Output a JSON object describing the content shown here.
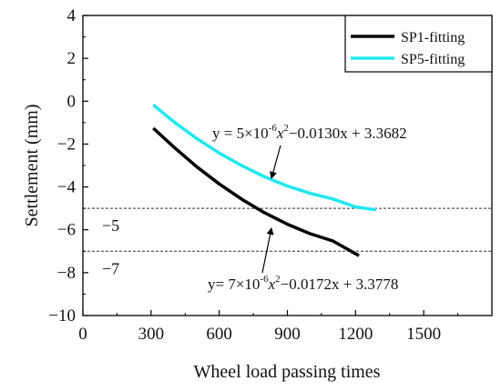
{
  "chart_data": {
    "type": "line",
    "xlabel": "Wheel load passing times",
    "ylabel": "Settlement (mm)",
    "xlim": [
      0,
      1800
    ],
    "ylim": [
      -10,
      4
    ],
    "xticks": [
      0,
      300,
      600,
      900,
      1200,
      1500
    ],
    "yticks": [
      -10,
      -8,
      -6,
      -4,
      -2,
      0,
      2,
      4
    ],
    "x_tick_labels": [
      "0",
      "300",
      "600",
      "900",
      "1200",
      "1500"
    ],
    "y_tick_labels": [
      "−10",
      "−8",
      "−6",
      "−4",
      "−2",
      "0",
      "2",
      "4"
    ],
    "grid": false,
    "legend_position": "top-right",
    "series": [
      {
        "name": "SP1-fitting",
        "color": "#000000",
        "x_range": [
          310,
          1215
        ],
        "x": [
          310,
          400,
          500,
          600,
          700,
          800,
          900,
          1000,
          1100,
          1215
        ],
        "y": [
          -1.26,
          -2.14,
          -3.05,
          -3.86,
          -4.58,
          -5.21,
          -5.74,
          -6.18,
          -6.52,
          -7.21
        ]
      },
      {
        "name": "SP5-fitting",
        "color": "#22e8ee",
        "x_range": [
          310,
          1290
        ],
        "x": [
          310,
          400,
          500,
          600,
          700,
          800,
          900,
          1000,
          1100,
          1200,
          1290
        ],
        "y": [
          -0.17,
          -0.96,
          -1.73,
          -2.42,
          -3.01,
          -3.53,
          -3.96,
          -4.3,
          -4.56,
          -4.93,
          -5.07
        ]
      }
    ],
    "reference_lines": [
      {
        "y": -5,
        "label": "−5",
        "style": "dashed"
      },
      {
        "y": -7,
        "label": "−7",
        "style": "dashed"
      }
    ],
    "annotations": [
      {
        "target": "SP5-fitting",
        "prefix": "y = 5×10",
        "exp": "-6",
        "mid": "x",
        "sq": "2",
        "tail": "−0.0130x + 3.3682",
        "arrow_from_x": 810,
        "arrow_to_x": 760
      },
      {
        "target": "SP1-fitting",
        "prefix": "y= 7×10",
        "exp": "-6",
        "mid": "x",
        "sq": "2",
        "tail": "−0.0172x + 3.3778",
        "arrow_from_x": 770,
        "arrow_to_x": 810
      }
    ]
  }
}
